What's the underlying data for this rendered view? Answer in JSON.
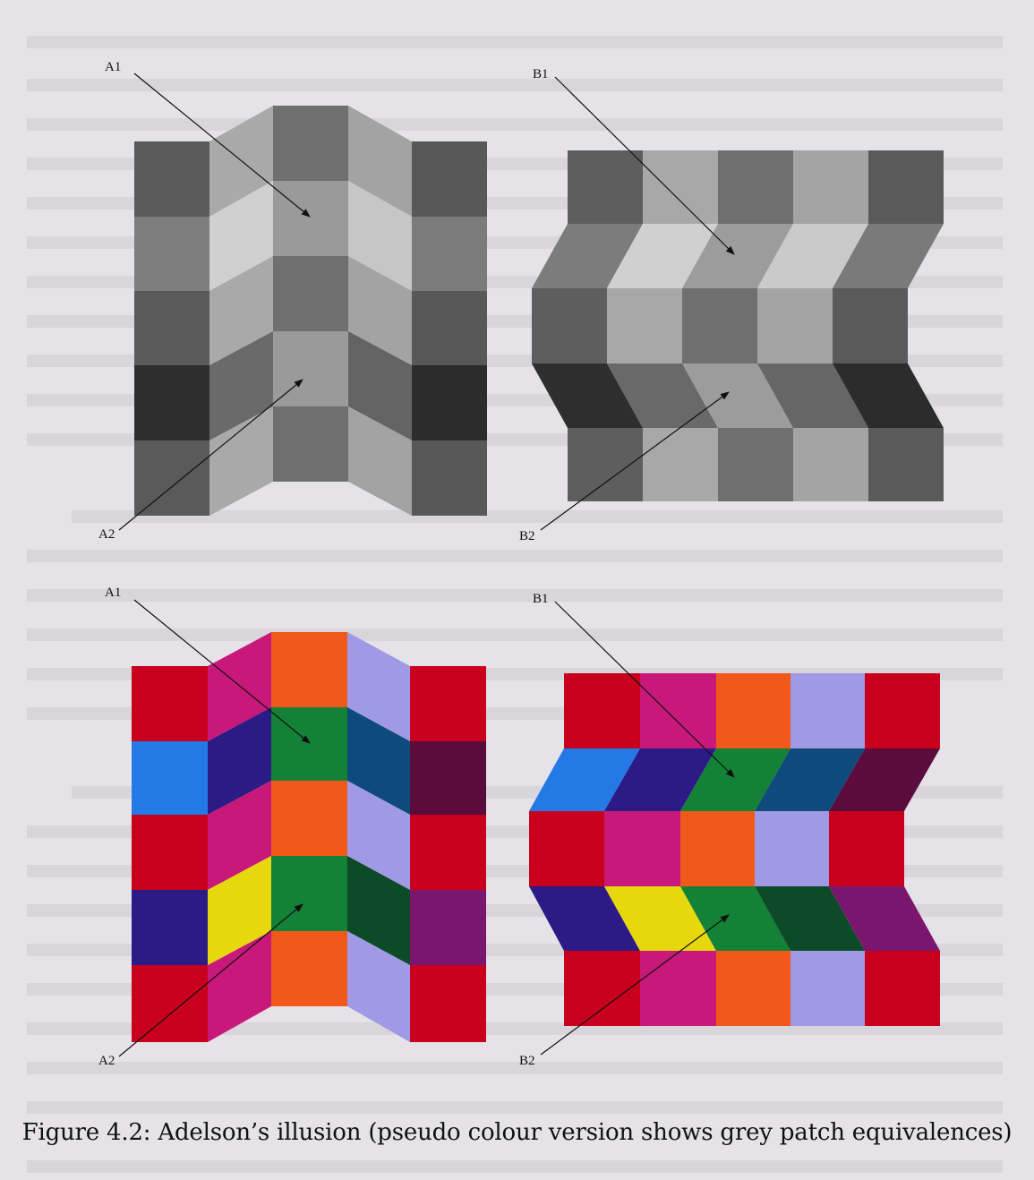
{
  "figure": {
    "labels": {
      "a1": "A1",
      "a2": "A2",
      "b1": "B1",
      "b2": "B2"
    },
    "caption": "Figure 4.2: Adelson’s illusion (pseudo colour version shows grey patch equivalences)"
  },
  "panels": [
    {
      "id": "grey-a",
      "style": "greyscale",
      "variant": "vertical-fold"
    },
    {
      "id": "grey-b",
      "style": "greyscale",
      "variant": "horizontal-fold"
    },
    {
      "id": "colour-a",
      "style": "pseudo-colour",
      "variant": "vertical-fold"
    },
    {
      "id": "colour-b",
      "style": "pseudo-colour",
      "variant": "horizontal-fold"
    }
  ],
  "colors": {
    "background": "#e6e3e8",
    "red": "#c8001e",
    "magenta": "#c8197a",
    "orange": "#f2581a",
    "lavender": "#a09ae6",
    "green": "#138236",
    "blue": "#2379e6",
    "indigo": "#2c1a86",
    "yellow": "#e6d80c",
    "darkgreen": "#0c4a28",
    "navy": "#0f4a7c",
    "plum": "#5a0d3c",
    "purple": "#7a166e"
  }
}
